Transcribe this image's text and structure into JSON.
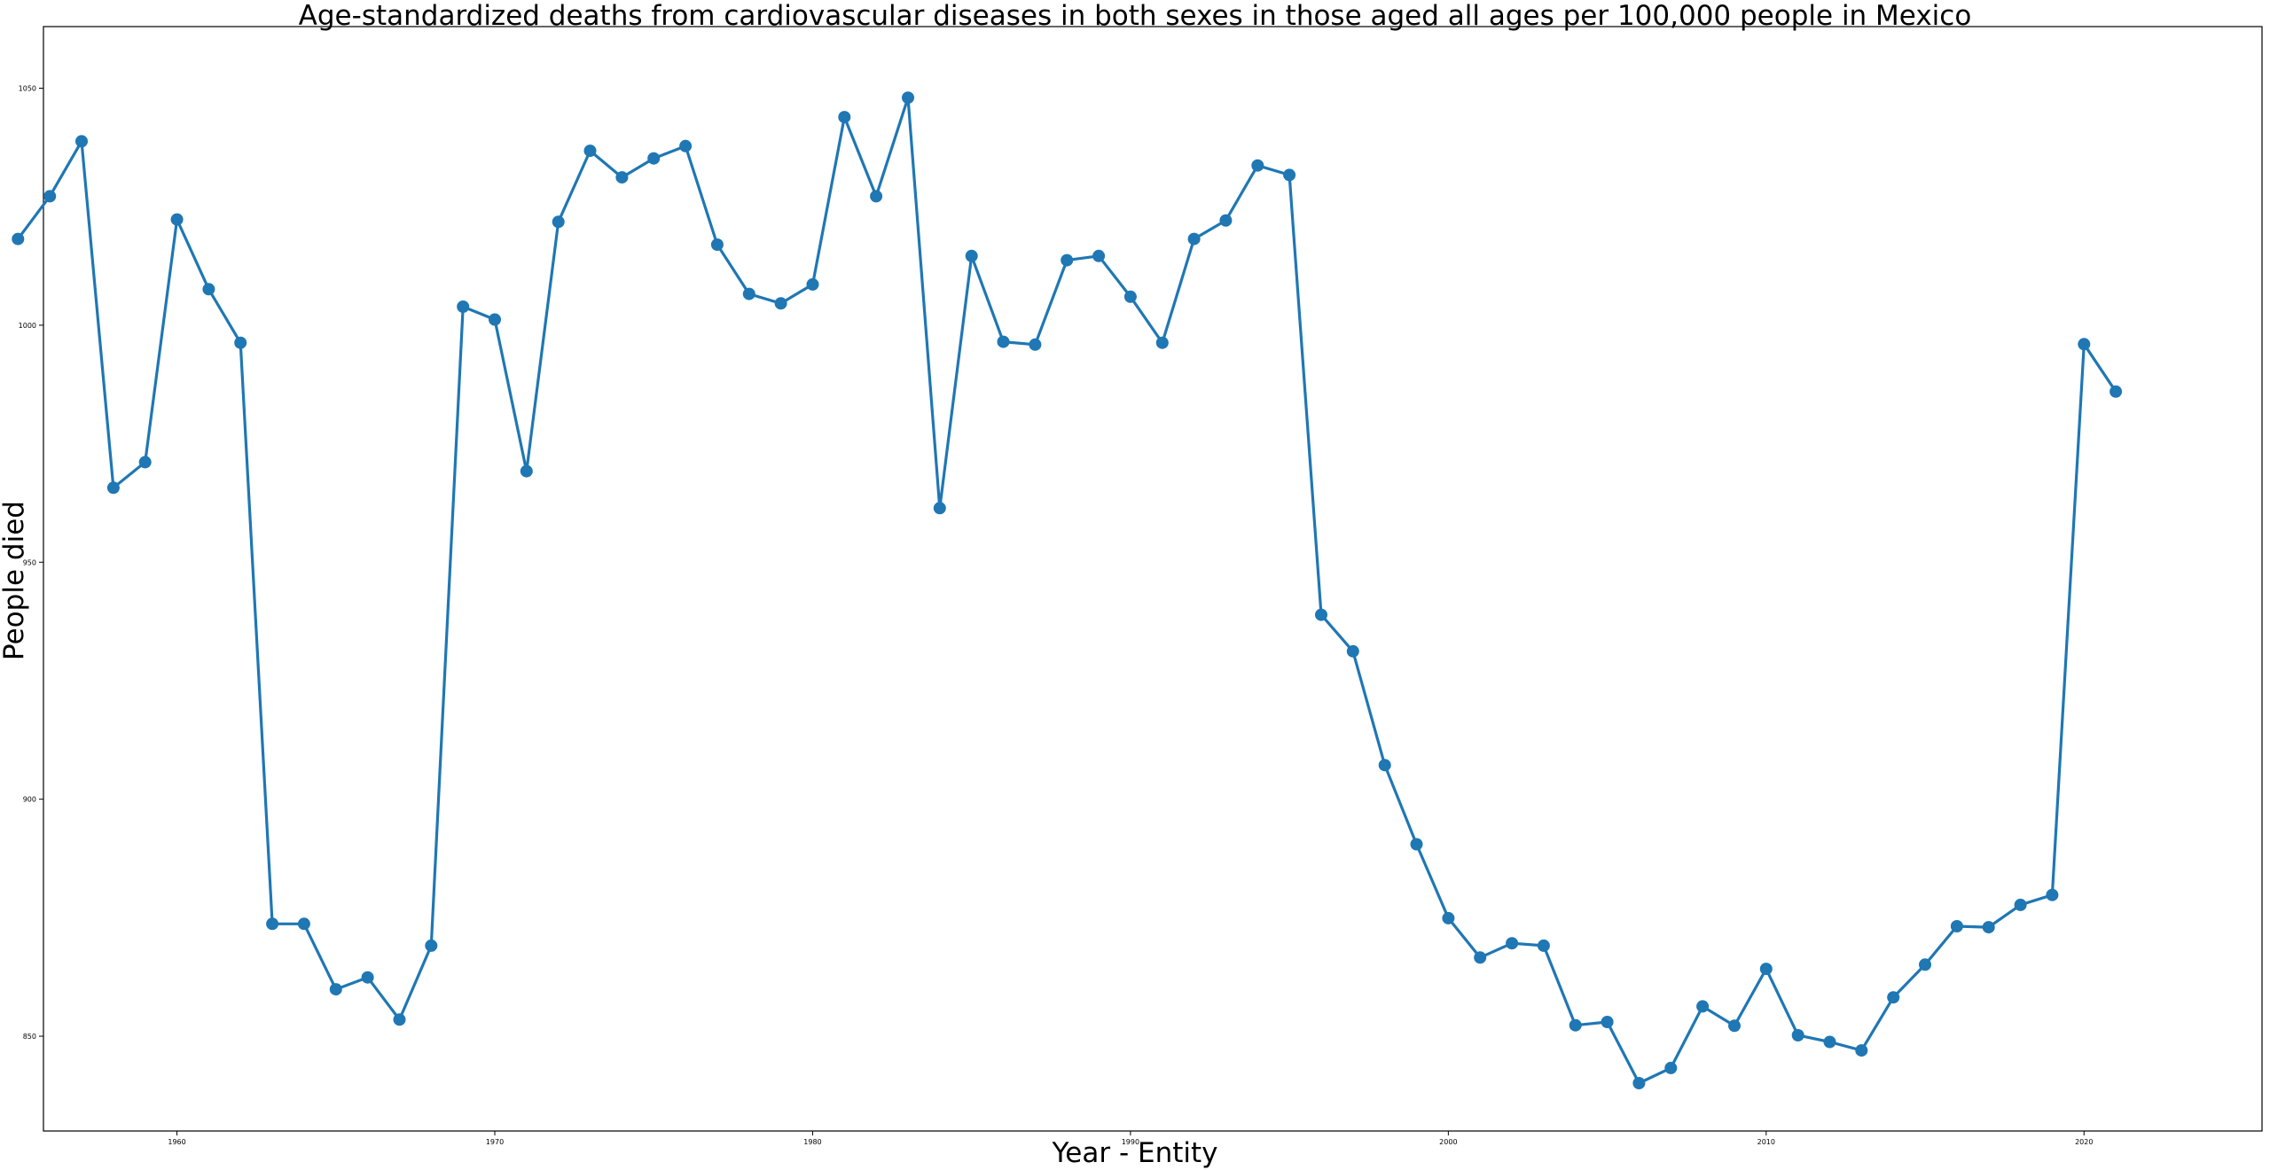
{
  "chart_data": {
    "type": "line",
    "title": "Age-standardized deaths from cardiovascular diseases in both sexes in those aged all ages per 100,000 people in Mexico",
    "xlabel": "Year - Entity",
    "ylabel": "People died",
    "x_tick_labels": [
      "1960",
      "1970",
      "1980",
      "1990",
      "2000",
      "2010",
      "2020"
    ],
    "y_tick_labels": [
      "850",
      "900",
      "950",
      "1000",
      "1050"
    ],
    "xlim": [
      1955.8,
      2025.6
    ],
    "ylim": [
      830,
      1063
    ],
    "grid": false,
    "legend": "none",
    "series": [
      {
        "color": "#1f77b4",
        "x": [
          1955,
          1956,
          1957,
          1958,
          1959,
          1960,
          1961,
          1962,
          1963,
          1964,
          1965,
          1966,
          1967,
          1968,
          1969,
          1970,
          1971,
          1972,
          1973,
          1974,
          1975,
          1976,
          1977,
          1978,
          1979,
          1980,
          1981,
          1982,
          1983,
          1984,
          1985,
          1986,
          1987,
          1988,
          1989,
          1990,
          1991,
          1992,
          1993,
          1994,
          1995,
          1996,
          1997,
          1998,
          1999,
          2000,
          2001,
          2002,
          2003,
          2004,
          2005,
          2006,
          2007,
          2008,
          2009,
          2010,
          2011,
          2012,
          2013,
          2014,
          2015,
          2016,
          2017,
          2018,
          2019,
          2020,
          2021
        ],
        "y": [
          1018.2,
          1027.2,
          1038.8,
          965.7,
          971.1,
          1022.3,
          1007.6,
          996.3,
          873.7,
          873.7,
          859.9,
          862.4,
          853.5,
          869.1,
          1003.9,
          1001.2,
          969.2,
          1021.8,
          1036.8,
          1031.2,
          1035.2,
          1037.8,
          1017.0,
          1006.6,
          1004.6,
          1008.6,
          1043.9,
          1027.2,
          1048.0,
          961.4,
          1014.6,
          996.5,
          995.9,
          1013.7,
          1014.6,
          1006.0,
          996.3,
          1018.2,
          1022.1,
          1033.7,
          1031.7,
          938.9,
          931.2,
          907.2,
          890.5,
          874.9,
          866.6,
          869.6,
          869.1,
          852.3,
          853.0,
          840.1,
          843.3,
          856.3,
          852.2,
          864.2,
          850.2,
          848.8,
          847.0,
          858.2,
          865.1,
          873.2,
          873.0,
          877.7,
          879.8,
          996.0,
          986.0
        ]
      }
    ]
  }
}
